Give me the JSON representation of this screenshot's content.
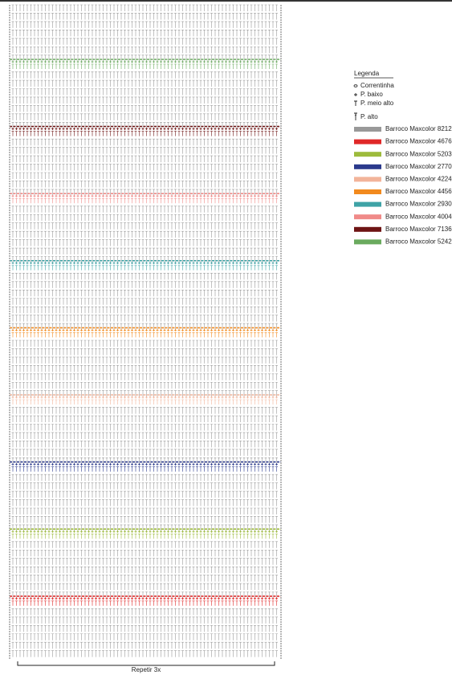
{
  "legend": {
    "title": "Legenda",
    "stitches": [
      "Correntinha",
      "P. baixo",
      "P. meio alto",
      "P. alto"
    ],
    "colors": [
      {
        "name": "Barroco Maxcolor 8212",
        "color": "#999999"
      },
      {
        "name": "Barroco Maxcolor 4676",
        "color": "#e02828"
      },
      {
        "name": "Barroco Maxcolor 5203",
        "color": "#9dbb3c"
      },
      {
        "name": "Barroco Maxcolor 2770",
        "color": "#2b3a8c"
      },
      {
        "name": "Barroco Maxcolor 4224",
        "color": "#f2b49a"
      },
      {
        "name": "Barroco Maxcolor 4456",
        "color": "#f28a1e"
      },
      {
        "name": "Barroco Maxcolor 2930",
        "color": "#3fa3a6"
      },
      {
        "name": "Barroco Maxcolor 4004",
        "color": "#f08a88"
      },
      {
        "name": "Barroco Maxcolor 7136",
        "color": "#6e1414"
      },
      {
        "name": "Barroco Maxcolor 5242",
        "color": "#6aaa5e"
      }
    ]
  },
  "footer": {
    "repeat": "Repetir 3x"
  }
}
